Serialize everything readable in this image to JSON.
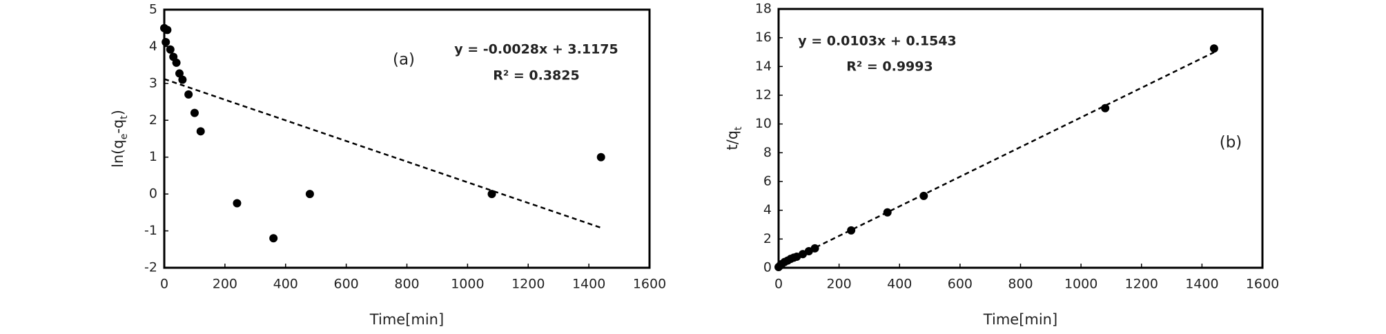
{
  "chart_data": [
    {
      "type": "scatter",
      "xlabel": "Time[min]",
      "ylabel_parts": [
        "ln(q",
        "e",
        "-q",
        "t",
        ")"
      ],
      "panel_label": "(a)",
      "equation": "y = -0.0028x + 3.1175",
      "r_squared": "R² = 0.3825",
      "x": [
        0,
        5,
        10,
        20,
        30,
        40,
        50,
        60,
        80,
        100,
        120,
        240,
        360,
        480,
        1080,
        1440
      ],
      "values": [
        4.5,
        4.12,
        4.45,
        3.92,
        3.72,
        3.56,
        3.27,
        3.1,
        2.7,
        2.2,
        1.7,
        -0.25,
        -1.2,
        0,
        0,
        1
      ],
      "color": "#000000",
      "trendline": {
        "x": [
          0,
          1440
        ],
        "y": [
          3.1175,
          -0.9145
        ]
      },
      "xlim": [
        0,
        1600
      ],
      "xticks": [
        0,
        200,
        400,
        600,
        800,
        1000,
        1200,
        1400,
        1600
      ],
      "ylim": [
        -2,
        5
      ],
      "yticks": [
        -2,
        -1,
        0,
        1,
        2,
        3,
        4,
        5
      ]
    },
    {
      "type": "scatter",
      "xlabel": "Time[min]",
      "ylabel_parts": [
        "t/q",
        "t"
      ],
      "panel_label": "(b)",
      "equation": "y = 0.0103x + 0.1543",
      "r_squared": "R² = 0.9993",
      "x": [
        0,
        5,
        10,
        20,
        30,
        40,
        50,
        60,
        80,
        100,
        120,
        240,
        360,
        480,
        1080,
        1440
      ],
      "values": [
        0.05,
        0.15,
        0.25,
        0.4,
        0.5,
        0.62,
        0.7,
        0.77,
        0.95,
        1.15,
        1.35,
        2.6,
        3.85,
        5.0,
        11.1,
        15.25
      ],
      "color": "#000000",
      "trendline": {
        "x": [
          0,
          1440
        ],
        "y": [
          0.1543,
          14.9863
        ]
      },
      "xlim": [
        0,
        1600
      ],
      "xticks": [
        0,
        200,
        400,
        600,
        800,
        1000,
        1200,
        1400,
        1600
      ],
      "ylim": [
        0,
        18
      ],
      "yticks": [
        0,
        2,
        4,
        6,
        8,
        10,
        12,
        14,
        16,
        18
      ]
    }
  ]
}
